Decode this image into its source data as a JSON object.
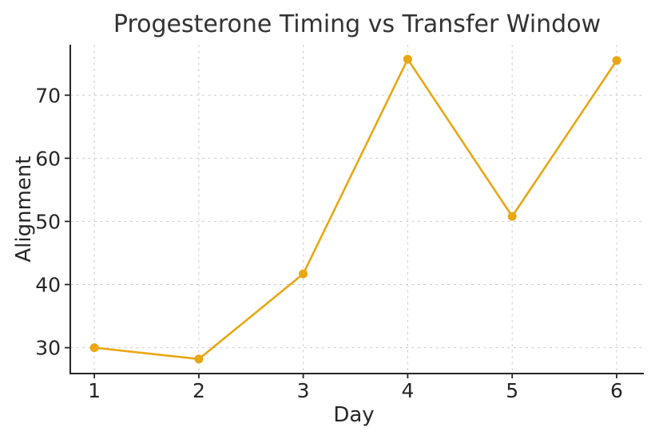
{
  "chart_data": {
    "type": "line",
    "title": "Progesterone Timing vs Transfer Window",
    "xlabel": "Day",
    "ylabel": "Alignment",
    "x": [
      1,
      2,
      3,
      4,
      5,
      6
    ],
    "values": [
      30.0,
      28.2,
      41.7,
      75.7,
      50.8,
      75.5
    ],
    "series_name": "Alignment",
    "x_ticks": [
      1,
      2,
      3,
      4,
      5,
      6
    ],
    "y_ticks": [
      30,
      40,
      50,
      60,
      70
    ],
    "xlim": [
      0.77,
      6.26
    ],
    "ylim": [
      25.9,
      78.0
    ],
    "grid": true,
    "grid_style": "dashed",
    "legend": false,
    "marker": "circle",
    "line_color": "#E8A713",
    "grid_color": "#CCCCCC",
    "axis_color": "#262626",
    "text_color": "#262626",
    "title_color": "#333333",
    "background_color": "#FFFFFF"
  }
}
